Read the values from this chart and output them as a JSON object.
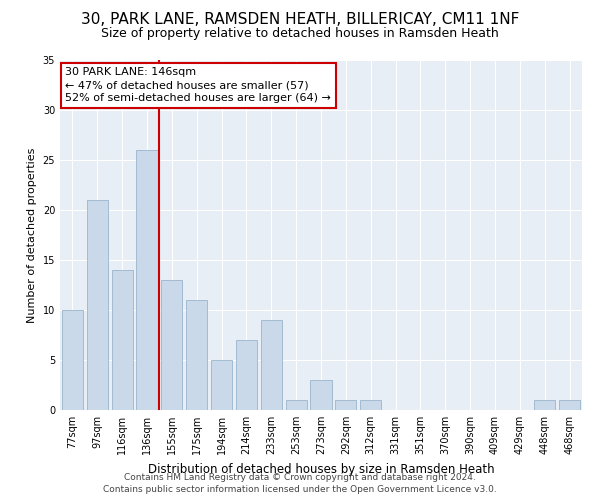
{
  "title1": "30, PARK LANE, RAMSDEN HEATH, BILLERICAY, CM11 1NF",
  "title2": "Size of property relative to detached houses in Ramsden Heath",
  "xlabel": "Distribution of detached houses by size in Ramsden Heath",
  "ylabel": "Number of detached properties",
  "categories": [
    "77sqm",
    "97sqm",
    "116sqm",
    "136sqm",
    "155sqm",
    "175sqm",
    "194sqm",
    "214sqm",
    "233sqm",
    "253sqm",
    "273sqm",
    "292sqm",
    "312sqm",
    "331sqm",
    "351sqm",
    "370sqm",
    "390sqm",
    "409sqm",
    "429sqm",
    "448sqm",
    "468sqm"
  ],
  "values": [
    10,
    21,
    14,
    26,
    13,
    11,
    5,
    7,
    9,
    1,
    3,
    1,
    1,
    0,
    0,
    0,
    0,
    0,
    0,
    1,
    1
  ],
  "bar_color": "#c9d9ea",
  "bar_edge_color": "#9ab5cc",
  "vline_x": 3.5,
  "vline_color": "#cc0000",
  "annotation_text": "30 PARK LANE: 146sqm\n← 47% of detached houses are smaller (57)\n52% of semi-detached houses are larger (64) →",
  "annotation_box_facecolor": "#ffffff",
  "annotation_box_edgecolor": "#cc0000",
  "ylim": [
    0,
    35
  ],
  "yticks": [
    0,
    5,
    10,
    15,
    20,
    25,
    30,
    35
  ],
  "plot_bg_color": "#e8eef5",
  "grid_color": "#ffffff",
  "footer_line1": "Contains HM Land Registry data © Crown copyright and database right 2024.",
  "footer_line2": "Contains public sector information licensed under the Open Government Licence v3.0.",
  "title1_fontsize": 11,
  "title2_fontsize": 9,
  "xlabel_fontsize": 8.5,
  "ylabel_fontsize": 8,
  "tick_fontsize": 7,
  "annotation_fontsize": 8,
  "footer_fontsize": 6.5
}
